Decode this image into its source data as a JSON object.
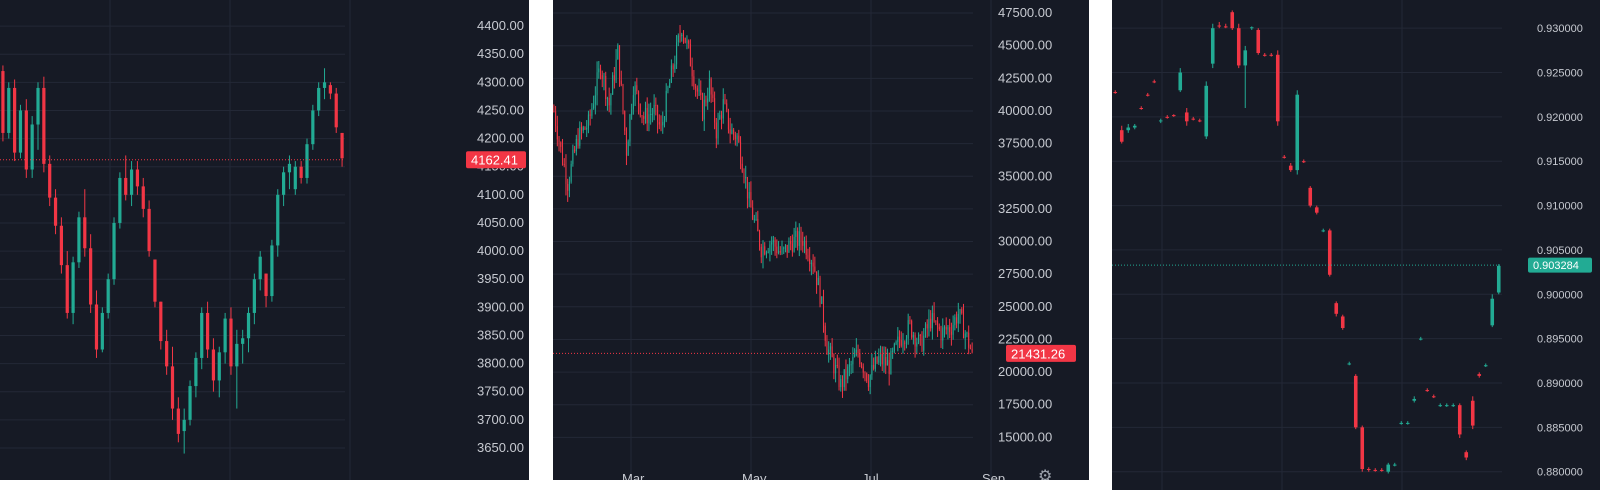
{
  "colors": {
    "background": "#161a25",
    "grid": "#232836",
    "up": "#22ab94",
    "down": "#f23645",
    "axis_text": "#c7cad1"
  },
  "icons": {
    "settings": "gear-icon"
  },
  "chart_data": [
    {
      "type": "candlestick",
      "title": "",
      "y_ticks": [
        "4400.00",
        "4350.00",
        "4300.00",
        "4250.00",
        "4200.00",
        "4150.00",
        "4100.00",
        "4050.00",
        "4000.00",
        "3950.00",
        "3900.00",
        "3850.00",
        "3800.00",
        "3750.00",
        "3700.00",
        "3650.00"
      ],
      "ylim": [
        3625,
        4425
      ],
      "last_price": "4162.41",
      "last_price_value": 4162.41,
      "last_price_direction": "down",
      "candles": [
        [
          4320,
          4330,
          4195,
          4210
        ],
        [
          4210,
          4300,
          4200,
          4290
        ],
        [
          4290,
          4305,
          4160,
          4175
        ],
        [
          4175,
          4260,
          4165,
          4250
        ],
        [
          4250,
          4270,
          4130,
          4145
        ],
        [
          4145,
          4240,
          4130,
          4225
        ],
        [
          4225,
          4300,
          4180,
          4290
        ],
        [
          4290,
          4310,
          4140,
          4155
        ],
        [
          4155,
          4170,
          4080,
          4095
        ],
        [
          4095,
          4110,
          4030,
          4045
        ],
        [
          4045,
          4060,
          3960,
          3975
        ],
        [
          3975,
          4000,
          3880,
          3890
        ],
        [
          3890,
          3990,
          3870,
          3980
        ],
        [
          3980,
          4070,
          3970,
          4060
        ],
        [
          4060,
          4110,
          3990,
          4005
        ],
        [
          4005,
          4030,
          3890,
          3905
        ],
        [
          3905,
          3930,
          3810,
          3825
        ],
        [
          3825,
          3900,
          3820,
          3890
        ],
        [
          3890,
          3960,
          3880,
          3950
        ],
        [
          3950,
          4060,
          3940,
          4050
        ],
        [
          4050,
          4140,
          4040,
          4130
        ],
        [
          4130,
          4170,
          4090,
          4100
        ],
        [
          4100,
          4160,
          4080,
          4145
        ],
        [
          4145,
          4160,
          4100,
          4115
        ],
        [
          4115,
          4130,
          4060,
          4075
        ],
        [
          4075,
          4090,
          3990,
          4000
        ],
        [
          3985,
          3985,
          3900,
          3910
        ],
        [
          3910,
          3910,
          3825,
          3840
        ],
        [
          3840,
          3860,
          3780,
          3795
        ],
        [
          3795,
          3830,
          3700,
          3720
        ],
        [
          3720,
          3740,
          3660,
          3675
        ],
        [
          3680,
          3720,
          3640,
          3700
        ],
        [
          3700,
          3770,
          3690,
          3760
        ],
        [
          3760,
          3820,
          3740,
          3810
        ],
        [
          3810,
          3900,
          3790,
          3890
        ],
        [
          3890,
          3910,
          3810,
          3825
        ],
        [
          3825,
          3845,
          3750,
          3770
        ],
        [
          3770,
          3830,
          3740,
          3820
        ],
        [
          3820,
          3890,
          3800,
          3880
        ],
        [
          3880,
          3900,
          3780,
          3795
        ],
        [
          3795,
          3860,
          3720,
          3835
        ],
        [
          3835,
          3860,
          3800,
          3845
        ],
        [
          3845,
          3900,
          3820,
          3890
        ],
        [
          3890,
          3960,
          3870,
          3950
        ],
        [
          3950,
          4000,
          3930,
          3990
        ],
        [
          3960,
          3960,
          3900,
          3920
        ],
        [
          3920,
          4020,
          3910,
          4010
        ],
        [
          4010,
          4110,
          3990,
          4100
        ],
        [
          4100,
          4150,
          4080,
          4140
        ],
        [
          4140,
          4170,
          4110,
          4155
        ],
        [
          4110,
          4160,
          4100,
          4150
        ],
        [
          4150,
          4160,
          4120,
          4130
        ],
        [
          4130,
          4200,
          4120,
          4190
        ],
        [
          4190,
          4260,
          4180,
          4250
        ],
        [
          4250,
          4300,
          4240,
          4290
        ],
        [
          4290,
          4325,
          4270,
          4300
        ],
        [
          4295,
          4300,
          4270,
          4280
        ],
        [
          4280,
          4290,
          4210,
          4220
        ],
        [
          4210,
          4210,
          4150,
          4165
        ]
      ]
    },
    {
      "type": "candlestick",
      "title": "",
      "y_ticks": [
        "47500.00",
        "45000.00",
        "42500.00",
        "40000.00",
        "37500.00",
        "35000.00",
        "32500.00",
        "30000.00",
        "27500.00",
        "25000.00",
        "22500.00",
        "20000.00",
        "17500.00",
        "15000.00"
      ],
      "ylim": [
        12500,
        48500
      ],
      "x_ticks": [
        "Mar",
        "May",
        "Jul",
        "Sep"
      ],
      "last_price": "21431.26",
      "last_price_value": 21431.26,
      "last_price_direction": "down",
      "control_points": [
        [
          0,
          40000
        ],
        [
          4,
          37000
        ],
        [
          8,
          34500
        ],
        [
          14,
          38000
        ],
        [
          20,
          39000
        ],
        [
          27,
          43500
        ],
        [
          32,
          40500
        ],
        [
          37,
          44500
        ],
        [
          42,
          37000
        ],
        [
          46,
          42000
        ],
        [
          52,
          39500
        ],
        [
          58,
          40000
        ],
        [
          62,
          38500
        ],
        [
          66,
          41500
        ],
        [
          70,
          44000
        ],
        [
          74,
          46500
        ],
        [
          78,
          44500
        ],
        [
          82,
          42000
        ],
        [
          86,
          40000
        ],
        [
          90,
          42000
        ],
        [
          94,
          38500
        ],
        [
          98,
          40500
        ],
        [
          102,
          38500
        ],
        [
          106,
          38000
        ],
        [
          110,
          35500
        ],
        [
          113,
          33000
        ],
        [
          116,
          31500
        ],
        [
          120,
          29500
        ],
        [
          126,
          30000
        ],
        [
          132,
          29000
        ],
        [
          138,
          30000
        ],
        [
          144,
          30200
        ],
        [
          150,
          28500
        ],
        [
          154,
          26000
        ],
        [
          158,
          22000
        ],
        [
          162,
          20500
        ],
        [
          166,
          19000
        ],
        [
          170,
          20000
        ],
        [
          176,
          21500
        ],
        [
          182,
          19500
        ],
        [
          188,
          21000
        ],
        [
          194,
          20500
        ],
        [
          200,
          22500
        ],
        [
          206,
          23500
        ],
        [
          212,
          22000
        ],
        [
          218,
          24000
        ],
        [
          224,
          23000
        ],
        [
          230,
          23500
        ],
        [
          234,
          24500
        ],
        [
          238,
          23000
        ],
        [
          242,
          21400
        ]
      ]
    },
    {
      "type": "candlestick",
      "title": "",
      "y_ticks": [
        "0.930000",
        "0.925000",
        "0.920000",
        "0.915000",
        "0.910000",
        "0.905000",
        "0.900000",
        "0.895000",
        "0.890000",
        "0.885000",
        "0.880000"
      ],
      "ylim": [
        0.8785,
        0.9325
      ],
      "last_price": "0.903284",
      "last_price_value": 0.903284,
      "last_price_direction": "up",
      "candles": [
        [
          0.9228,
          0.923,
          0.9226,
          0.9227
        ],
        [
          0.9185,
          0.919,
          0.917,
          0.9172
        ],
        [
          0.9185,
          0.9192,
          0.9182,
          0.9188
        ],
        [
          0.9188,
          0.9192,
          0.9186,
          0.919
        ],
        [
          0.921,
          0.9212,
          0.9208,
          0.9209
        ],
        [
          0.9225,
          0.9227,
          0.9223,
          0.9224
        ],
        [
          0.924,
          0.9242,
          0.9238,
          0.9239
        ],
        [
          0.9195,
          0.9198,
          0.9193,
          0.9196
        ],
        [
          0.92,
          0.9202,
          0.9198,
          0.9199
        ],
        [
          0.9202,
          0.9203,
          0.92,
          0.9201
        ],
        [
          0.923,
          0.9255,
          0.9228,
          0.925
        ],
        [
          0.9205,
          0.921,
          0.919,
          0.9195
        ],
        [
          0.9198,
          0.92,
          0.9196,
          0.9197
        ],
        [
          0.9196,
          0.9198,
          0.9194,
          0.9195
        ],
        [
          0.9178,
          0.924,
          0.9175,
          0.9235
        ],
        [
          0.926,
          0.9305,
          0.9255,
          0.93
        ],
        [
          0.9303,
          0.9307,
          0.93,
          0.9302
        ],
        [
          0.9302,
          0.9305,
          0.93,
          0.9301
        ],
        [
          0.9318,
          0.932,
          0.9298,
          0.93
        ],
        [
          0.93,
          0.9305,
          0.9255,
          0.9258
        ],
        [
          0.9258,
          0.928,
          0.921,
          0.9275
        ],
        [
          0.93,
          0.9302,
          0.9298,
          0.9301
        ],
        [
          0.9298,
          0.93,
          0.927,
          0.9272
        ],
        [
          0.927,
          0.9272,
          0.9268,
          0.9269
        ],
        [
          0.927,
          0.9272,
          0.9268,
          0.9269
        ],
        [
          0.927,
          0.9275,
          0.919,
          0.9195
        ],
        [
          0.9155,
          0.9157,
          0.9153,
          0.9154
        ],
        [
          0.9145,
          0.9148,
          0.9138,
          0.914
        ],
        [
          0.914,
          0.923,
          0.9135,
          0.9225
        ],
        [
          0.915,
          0.9152,
          0.9148,
          0.9149
        ],
        [
          0.912,
          0.9122,
          0.9098,
          0.91
        ],
        [
          0.9098,
          0.91,
          0.909,
          0.9092
        ],
        [
          0.9072,
          0.9074,
          0.907,
          0.9072
        ],
        [
          0.9072,
          0.9074,
          0.902,
          0.9022
        ],
        [
          0.899,
          0.8992,
          0.8975,
          0.8978
        ],
        [
          0.8975,
          0.8977,
          0.896,
          0.8962
        ],
        [
          0.8922,
          0.8924,
          0.892,
          0.8922
        ],
        [
          0.8908,
          0.891,
          0.8848,
          0.885
        ],
        [
          0.885,
          0.8852,
          0.88,
          0.8803
        ],
        [
          0.8803,
          0.8805,
          0.88,
          0.8802
        ],
        [
          0.8802,
          0.8804,
          0.88,
          0.8801
        ],
        [
          0.8802,
          0.8804,
          0.88,
          0.8801
        ],
        [
          0.88,
          0.881,
          0.8798,
          0.8808
        ],
        [
          0.8808,
          0.881,
          0.8806,
          0.8808
        ],
        [
          0.8855,
          0.8857,
          0.8853,
          0.8855
        ],
        [
          0.8855,
          0.8857,
          0.8853,
          0.8855
        ],
        [
          0.888,
          0.8885,
          0.8878,
          0.8882
        ],
        [
          0.895,
          0.8952,
          0.8948,
          0.895
        ],
        [
          0.8892,
          0.8894,
          0.889,
          0.8891
        ],
        [
          0.8885,
          0.8887,
          0.8883,
          0.8884
        ],
        [
          0.8875,
          0.8877,
          0.8873,
          0.8875
        ],
        [
          0.8875,
          0.8877,
          0.8873,
          0.8875
        ],
        [
          0.8875,
          0.8877,
          0.8873,
          0.8875
        ],
        [
          0.8875,
          0.8877,
          0.8838,
          0.8842
        ],
        [
          0.8822,
          0.8824,
          0.8813,
          0.8816
        ],
        [
          0.888,
          0.8885,
          0.8848,
          0.8852
        ],
        [
          0.891,
          0.8912,
          0.8906,
          0.8908
        ],
        [
          0.892,
          0.8922,
          0.8918,
          0.892
        ],
        [
          0.8965,
          0.9,
          0.8963,
          0.8995
        ],
        [
          0.9002,
          0.9034,
          0.9,
          0.9032
        ]
      ]
    }
  ]
}
